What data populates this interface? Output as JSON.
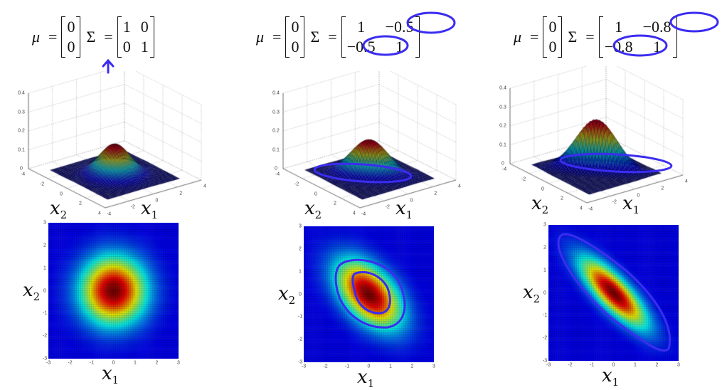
{
  "panels": [
    {
      "mu_symbol": "μ",
      "sigma_symbol": "Σ",
      "equals": "=",
      "mu": [
        "0",
        "0"
      ],
      "sigma": [
        [
          "1",
          "0"
        ],
        [
          "0",
          "1"
        ]
      ]
    },
    {
      "mu_symbol": "μ",
      "sigma_symbol": "Σ",
      "equals": "=",
      "mu": [
        "0",
        "0"
      ],
      "sigma": [
        [
          "1",
          "−0.5"
        ],
        [
          "−0.5",
          "1"
        ]
      ]
    },
    {
      "mu_symbol": "μ",
      "sigma_symbol": "Σ",
      "equals": "=",
      "mu": [
        "0",
        "0"
      ],
      "sigma": [
        [
          "1",
          "−0.8"
        ],
        [
          "−0.8",
          "1"
        ]
      ]
    }
  ],
  "axis_labels": {
    "x1": {
      "base": "x",
      "sub": "1"
    },
    "x2": {
      "base": "x",
      "sub": "2"
    }
  },
  "annotation_color": "#3b2cf0",
  "chart_data": [
    {
      "type": "surface",
      "mu": [
        0,
        0
      ],
      "sigma": [
        [
          1,
          0
        ],
        [
          0,
          1
        ]
      ],
      "zlim": [
        0,
        0.4
      ],
      "zticks": [
        "0",
        "0.1",
        "0.2",
        "0.3",
        "0.4"
      ],
      "x1ticks": [
        "-4",
        "-2",
        "0",
        "2",
        "4"
      ],
      "x2ticks": [
        "-4",
        "-2",
        "0",
        "2",
        "4"
      ],
      "xlabel": "x1",
      "ylabel": "x2",
      "range": [
        -3,
        3
      ],
      "grid": true
    },
    {
      "type": "surface",
      "mu": [
        0,
        0
      ],
      "sigma": [
        [
          1,
          -0.5
        ],
        [
          -0.5,
          1
        ]
      ],
      "zlim": [
        0,
        0.4
      ],
      "zticks": [
        "0",
        "0.1",
        "0.2",
        "0.3",
        "0.4"
      ],
      "x1ticks": [
        "-4",
        "-2",
        "0",
        "2",
        "4"
      ],
      "x2ticks": [
        "-4",
        "-2",
        "0",
        "2",
        "4"
      ],
      "xlabel": "x1",
      "ylabel": "x2",
      "range": [
        -3,
        3
      ],
      "grid": true
    },
    {
      "type": "surface",
      "mu": [
        0,
        0
      ],
      "sigma": [
        [
          1,
          -0.8
        ],
        [
          -0.8,
          1
        ]
      ],
      "zlim": [
        0,
        0.4
      ],
      "zticks": [
        "0",
        "0.1",
        "0.2",
        "0.3",
        "0.4"
      ],
      "x1ticks": [
        "-4",
        "-2",
        "0",
        "2",
        "4"
      ],
      "x2ticks": [
        "-4",
        "-2",
        "0",
        "2",
        "4"
      ],
      "xlabel": "x1",
      "ylabel": "x2",
      "range": [
        -3,
        3
      ],
      "grid": true
    },
    {
      "type": "heatmap",
      "mu": [
        0,
        0
      ],
      "sigma": [
        [
          1,
          0
        ],
        [
          0,
          1
        ]
      ],
      "xlim": [
        -3,
        3
      ],
      "ylim": [
        -3,
        3
      ],
      "xticks": [
        "-3",
        "-2",
        "-1",
        "0",
        "1",
        "2",
        "3"
      ],
      "yticks": [
        "-3",
        "-2",
        "-1",
        "0",
        "1",
        "2",
        "3"
      ],
      "xlabel": "x1",
      "ylabel": "x2",
      "colormap": "jet"
    },
    {
      "type": "heatmap",
      "mu": [
        0,
        0
      ],
      "sigma": [
        [
          1,
          -0.5
        ],
        [
          -0.5,
          1
        ]
      ],
      "xlim": [
        -3,
        3
      ],
      "ylim": [
        -3,
        3
      ],
      "xticks": [
        "-3",
        "-2",
        "-1",
        "0",
        "1",
        "2",
        "3"
      ],
      "yticks": [
        "-3",
        "-2",
        "-1",
        "0",
        "1",
        "2",
        "3"
      ],
      "xlabel": "x1",
      "ylabel": "x2",
      "colormap": "jet"
    },
    {
      "type": "heatmap",
      "mu": [
        0,
        0
      ],
      "sigma": [
        [
          1,
          -0.8
        ],
        [
          -0.8,
          1
        ]
      ],
      "xlim": [
        -3,
        3
      ],
      "ylim": [
        -3,
        3
      ],
      "xticks": [
        "-3",
        "-2",
        "-1",
        "0",
        "1",
        "2",
        "3"
      ],
      "yticks": [
        "-3",
        "-2",
        "-1",
        "0",
        "1",
        "2",
        "3"
      ],
      "xlabel": "x1",
      "ylabel": "x2",
      "colormap": "jet"
    }
  ]
}
